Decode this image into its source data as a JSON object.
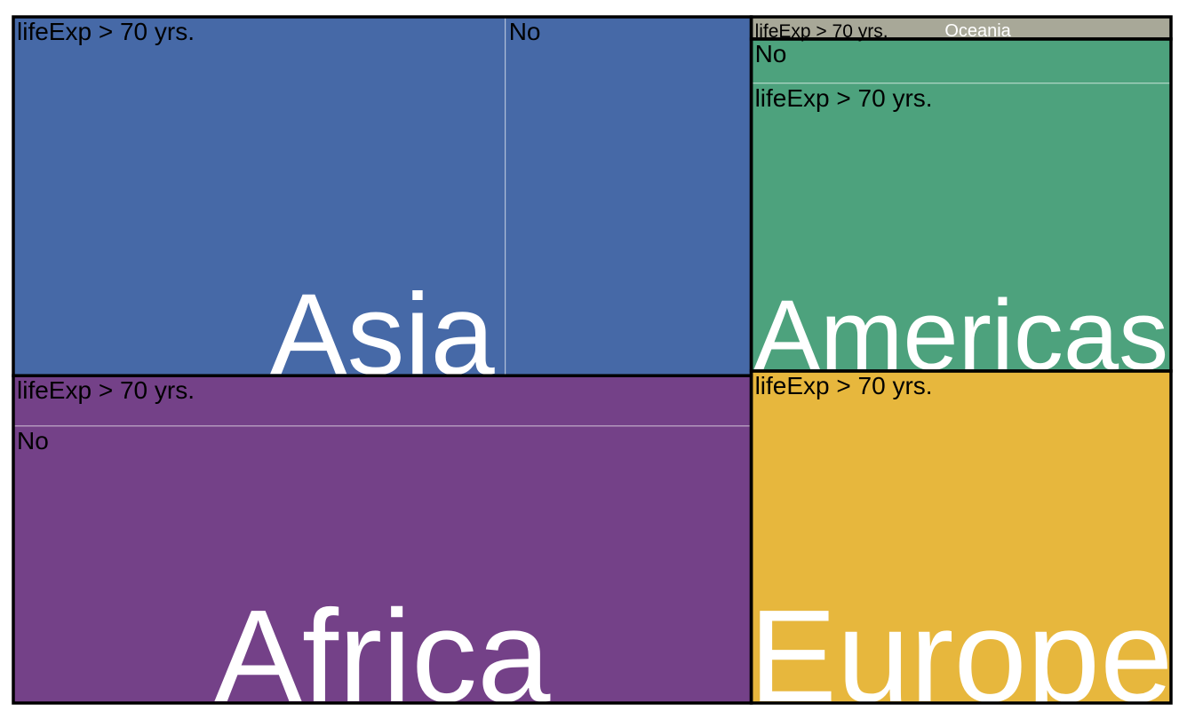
{
  "chart_data": {
    "type": "treemap",
    "title": "",
    "groups": [
      {
        "name": "Asia",
        "color": "#4669A7",
        "children": [
          {
            "label": "lifeExp > 70 yrs.",
            "value": 38
          },
          {
            "label": "No",
            "value": 19
          }
        ]
      },
      {
        "name": "Africa",
        "color": "#744188",
        "children": [
          {
            "label": "lifeExp > 70 yrs.",
            "value": 8
          },
          {
            "label": "No",
            "value": 44
          }
        ]
      },
      {
        "name": "Americas",
        "color": "#4DA27D",
        "children": [
          {
            "label": "No",
            "value": 4
          },
          {
            "label": "lifeExp > 70 yrs.",
            "value": 26
          }
        ]
      },
      {
        "name": "Europe",
        "color": "#E7B73D",
        "children": [
          {
            "label": "lifeExp > 70 yrs.",
            "value": 30
          }
        ]
      },
      {
        "name": "Oceania",
        "color": "#A8A898",
        "children": [
          {
            "label": "lifeExp > 70 yrs.",
            "value": 2
          }
        ]
      }
    ],
    "legend": "none"
  }
}
